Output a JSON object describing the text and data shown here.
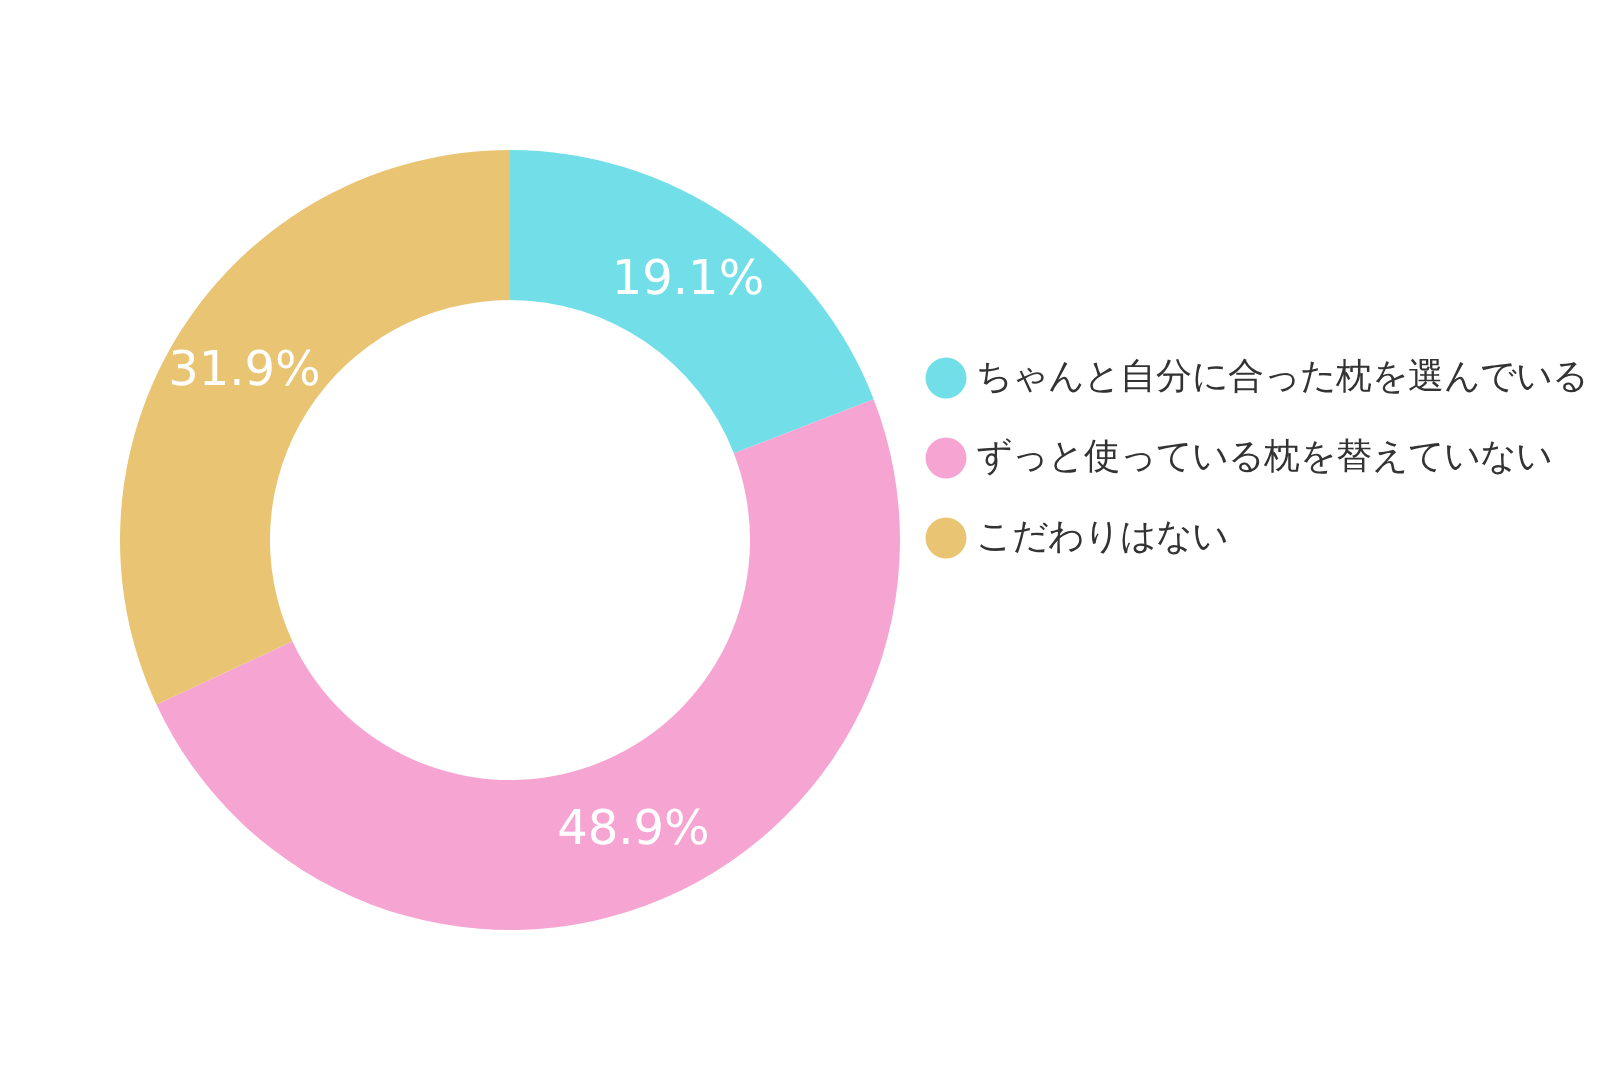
{
  "chart_data": {
    "type": "donut",
    "categories": [
      "ちゃんと自分に合った枕を選んでいる",
      "ずっと使っている枕を替えていない",
      "こだわりはない"
    ],
    "values": [
      19.1,
      48.9,
      31.9
    ],
    "colors": [
      "#72dfe8",
      "#f6a5d3",
      "#e8c473"
    ],
    "value_labels": [
      "19.1%",
      "48.9%",
      "31.9%"
    ],
    "legend": "right"
  }
}
